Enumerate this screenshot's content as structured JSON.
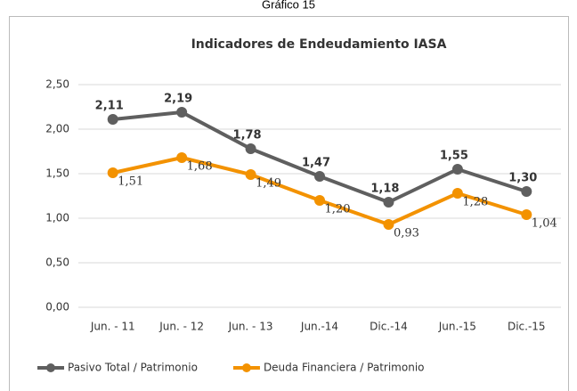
{
  "caption": "Gráfico 15",
  "chart_data": {
    "type": "line",
    "title": "Indicadores de Endeudamiento IASA",
    "categories": [
      "Jun. - 11",
      "Jun. - 12",
      "Jun. - 13",
      "Jun.-14",
      "Dic.-14",
      "Jun.-15",
      "Dic.-15"
    ],
    "series": [
      {
        "name": "Pasivo Total / Patrimonio",
        "color": "#5f5f5f",
        "values": [
          2.11,
          2.19,
          1.78,
          1.47,
          1.18,
          1.55,
          1.3
        ],
        "value_labels": [
          "2,11",
          "2,19",
          "1,78",
          "1,47",
          "1,18",
          "1,55",
          "1,30"
        ]
      },
      {
        "name": "Deuda Financiera / Patrimonio",
        "color": "#f39200",
        "values": [
          1.51,
          1.68,
          1.49,
          1.2,
          0.93,
          1.28,
          1.04
        ],
        "value_labels": [
          "1,51",
          "1,68",
          "1,49",
          "1,20",
          "0,93",
          "1,28",
          "1,04"
        ]
      }
    ],
    "ylim": [
      0,
      2.5
    ],
    "yticks": [
      {
        "value": 0,
        "label": "0,00"
      },
      {
        "value": 0.5,
        "label": "0,50"
      },
      {
        "value": 1,
        "label": "1,00"
      },
      {
        "value": 1.5,
        "label": "1,50"
      },
      {
        "value": 2,
        "label": "2,00"
      },
      {
        "value": 2.5,
        "label": "2,50"
      }
    ],
    "grid": true,
    "legend": "bottom"
  }
}
